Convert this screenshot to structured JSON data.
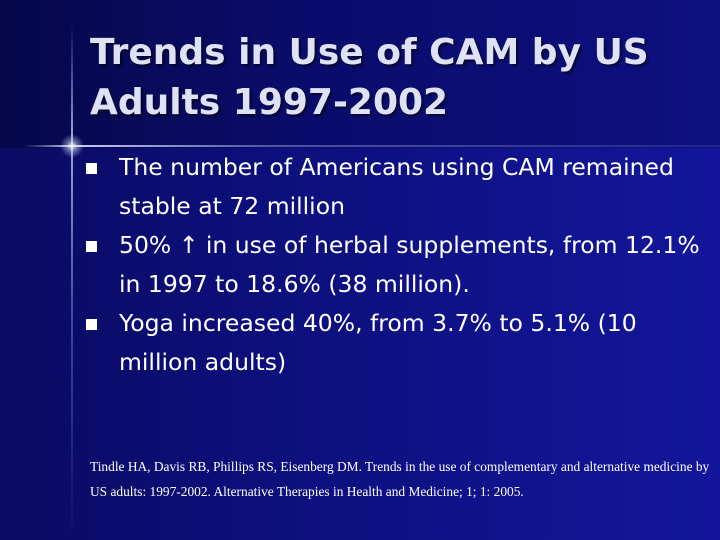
{
  "slide": {
    "title": "Trends in Use of CAM by US Adults 1997-2002",
    "bullets": [
      "The number of Americans using CAM remained stable at 72 million",
      "50% ↑ in use of herbal supplements, from 12.1% in 1997 to 18.6% (38 million).",
      "Yoga increased 40%, from 3.7% to 5.1% (10 million adults)"
    ],
    "bullet_icon": "square-bullet",
    "citation": "Tindle HA, Davis RB, Phillips RS, Eisenberg DM. Trends in the use of complementary and alternative medicine by US adults: 1997-2002. Alternative Therapies in Health and Medicine; 1; 1: 2005."
  },
  "colors": {
    "background": "#0c0f7a",
    "title_band": "#0a0c6a",
    "title_text": "#dfe2f4",
    "body_text": "#ffffff"
  }
}
